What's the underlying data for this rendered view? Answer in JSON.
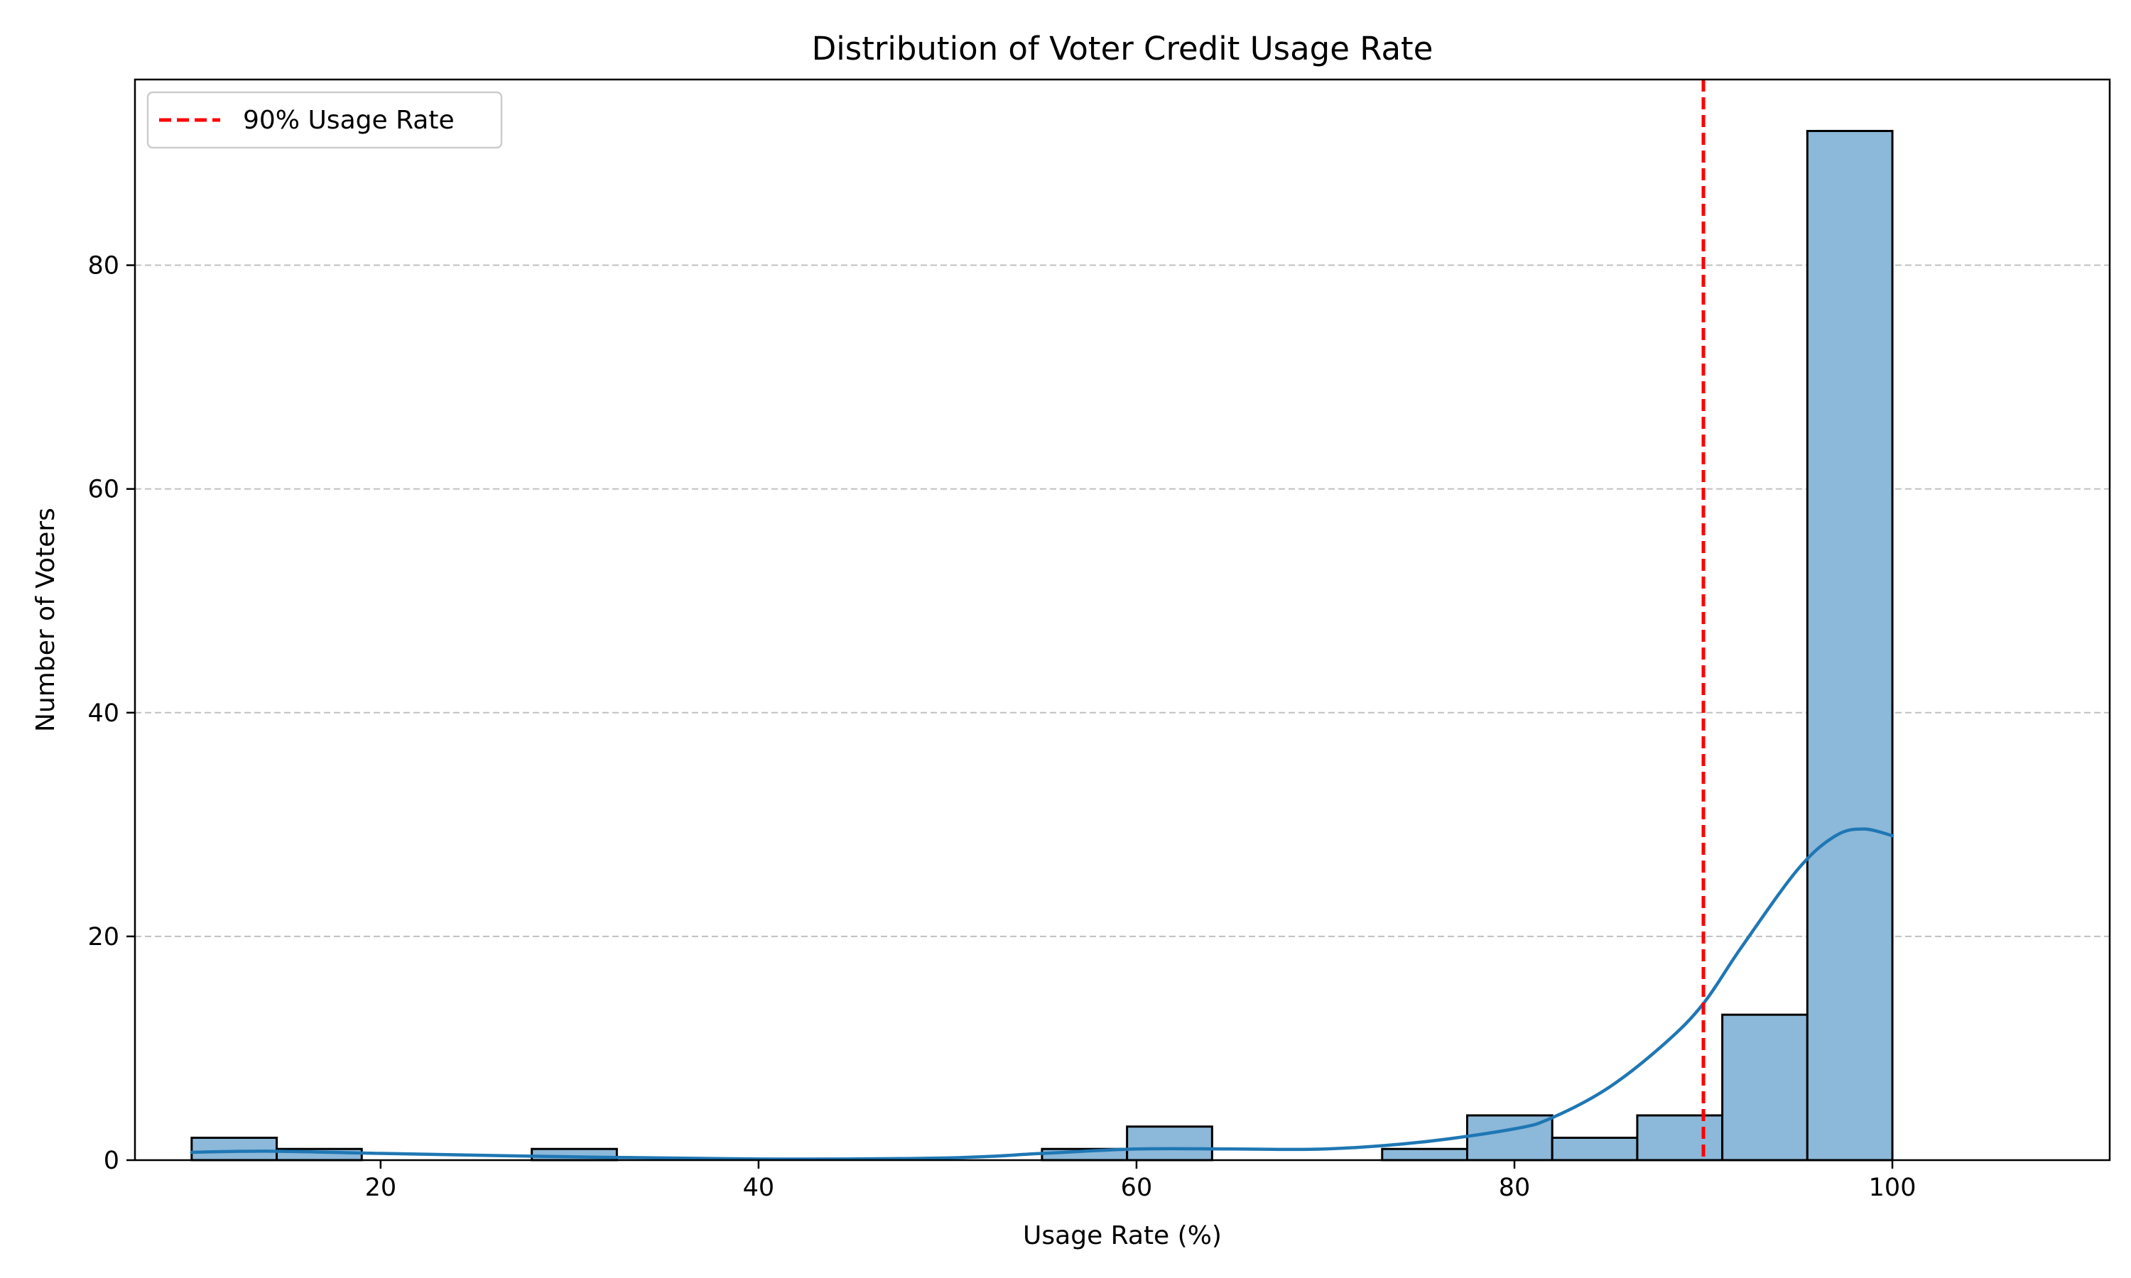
{
  "chart_data": {
    "type": "histogram",
    "title": "Distribution of Voter Credit Usage Rate",
    "xlabel": "Usage Rate (%)",
    "ylabel": "Number of Voters",
    "xlim": [
      7,
      111.5
    ],
    "ylim": [
      0,
      96.6
    ],
    "xticks": [
      20,
      40,
      60,
      80,
      100
    ],
    "yticks": [
      0,
      20,
      40,
      60,
      80
    ],
    "grid": "y-dashed",
    "bin_start": 10,
    "bin_width": 4.5,
    "counts": [
      2,
      1,
      0,
      0,
      1,
      0,
      0,
      0,
      0,
      0,
      1,
      3,
      0,
      0,
      1,
      4,
      2,
      4,
      13,
      92
    ],
    "bar_color": "#8cb8d9",
    "bar_edge_color": "#000000",
    "kde": {
      "color": "#1f77b4",
      "x": [
        10,
        14,
        20,
        30,
        40,
        50,
        55,
        60,
        65,
        70,
        75,
        80,
        82,
        85,
        88,
        90,
        92,
        95,
        97,
        98.5,
        100
      ],
      "y": [
        0.7,
        0.8,
        0.6,
        0.3,
        0.1,
        0.2,
        0.6,
        1.0,
        1.0,
        1.0,
        1.6,
        2.8,
        3.8,
        6.5,
        10.5,
        14,
        19,
        26,
        29,
        29.6,
        29
      ]
    },
    "reference_line": {
      "x": 90,
      "label": "90% Usage Rate",
      "color": "#ff0000",
      "style": "dashed"
    },
    "legend": {
      "placement": "top-left",
      "entries": [
        "90% Usage Rate"
      ]
    }
  }
}
